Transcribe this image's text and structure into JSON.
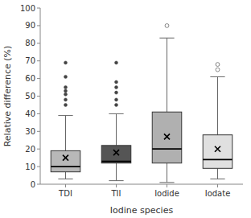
{
  "chart_data": {
    "type": "box",
    "categories": [
      "TDI",
      "TII",
      "Iodide",
      "Iodate"
    ],
    "values": [
      {
        "whislo": 3,
        "q1": 7,
        "med": 10,
        "q3": 19,
        "whishi": 39,
        "fliers": [
          45,
          48,
          51,
          53,
          55,
          61,
          69
        ],
        "mean": 15,
        "marker": "filled"
      },
      {
        "whislo": 2,
        "q1": 12,
        "med": 13,
        "q3": 22,
        "whishi": 40,
        "fliers": [
          45,
          48,
          52,
          55,
          58,
          69
        ],
        "mean": 18,
        "marker": "filled"
      },
      {
        "whislo": 1,
        "q1": 12,
        "med": 20,
        "q3": 41,
        "whishi": 83,
        "fliers": [
          90
        ],
        "mean": 27,
        "marker": "hollow"
      },
      {
        "whislo": 3,
        "q1": 9,
        "med": 14,
        "q3": 28,
        "whishi": 61,
        "fliers": [
          65,
          68
        ],
        "mean": 20,
        "marker": "hollow"
      }
    ],
    "colors": [
      "#b8b8b8",
      "#555555",
      "#b0b0b0",
      "#e0e0e0"
    ],
    "xlabel": "Iodine species",
    "ylabel": "Relative difference (%)",
    "ylim": [
      0,
      100
    ],
    "yticks": [
      0,
      10,
      20,
      30,
      40,
      50,
      60,
      70,
      80,
      90,
      100
    ],
    "grid": false
  }
}
